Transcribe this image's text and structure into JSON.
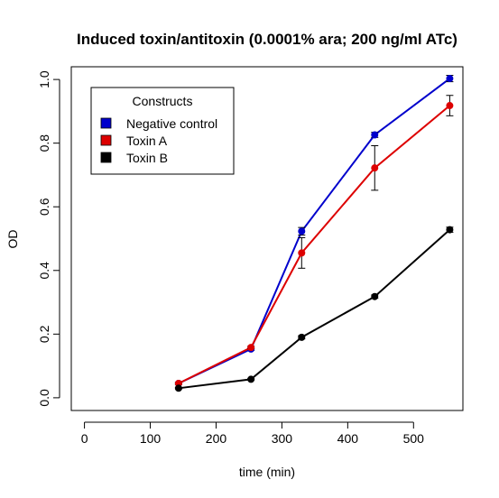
{
  "chart_data": {
    "type": "line",
    "title": "Induced toxin/antitoxin (0.0001% ara; 200 ng/ml ATc)",
    "xlabel": "time (min)",
    "ylabel": "OD",
    "xlim": [
      -20,
      575
    ],
    "ylim": [
      -0.04,
      1.04
    ],
    "xticks": [
      0,
      100,
      200,
      300,
      400,
      500
    ],
    "yticks": [
      0.0,
      0.2,
      0.4,
      0.6,
      0.8,
      1.0
    ],
    "xtick_labels": [
      "0",
      "100",
      "200",
      "300",
      "400",
      "500"
    ],
    "ytick_labels": [
      "0.0",
      "0.2",
      "0.4",
      "0.6",
      "0.8",
      "1.0"
    ],
    "grid": false,
    "legend": {
      "title": "Constructs",
      "placement": "top-left"
    },
    "x": [
      143,
      253,
      330,
      441,
      555
    ],
    "series": [
      {
        "name": "Negative control",
        "color": "#0000cc",
        "values": [
          0.045,
          0.153,
          0.523,
          0.826,
          1.003
        ],
        "errors": [
          0.003,
          0.004,
          0.012,
          0.008,
          0.01
        ]
      },
      {
        "name": "Toxin A",
        "color": "#dd0000",
        "values": [
          0.045,
          0.158,
          0.455,
          0.722,
          0.918
        ],
        "errors": [
          0.003,
          0.004,
          0.048,
          0.07,
          0.032
        ]
      },
      {
        "name": "Toxin B",
        "color": "#000000",
        "values": [
          0.03,
          0.058,
          0.19,
          0.318,
          0.528
        ],
        "errors": [
          0.002,
          0.002,
          0.005,
          0.005,
          0.008
        ]
      }
    ]
  }
}
